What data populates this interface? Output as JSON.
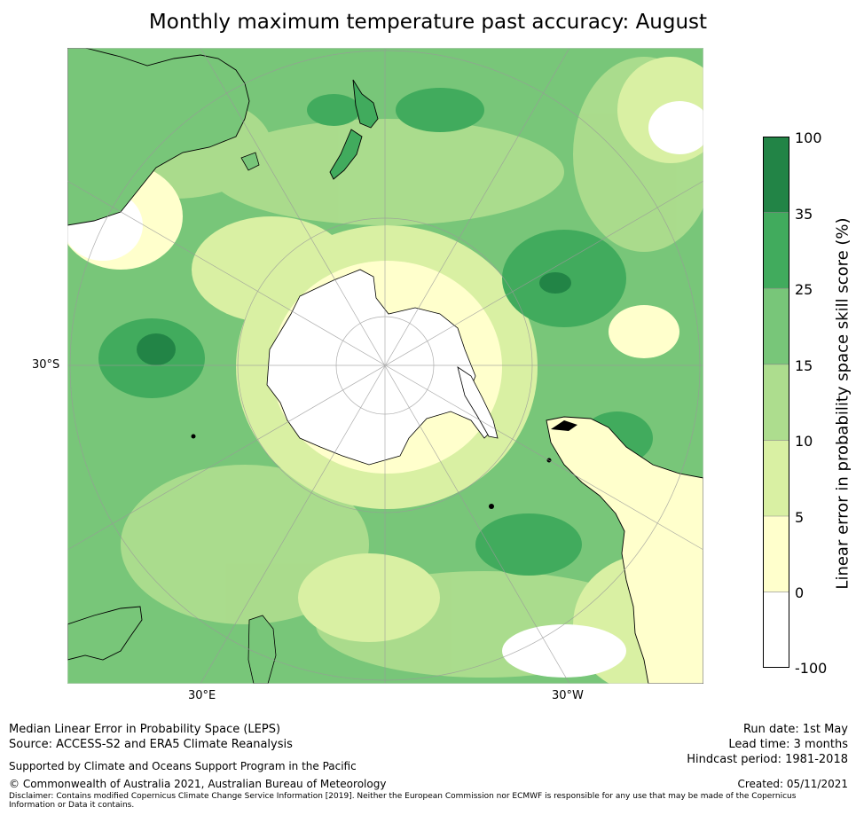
{
  "title": "Monthly maximum temperature past accuracy: August",
  "map": {
    "projection": "south polar stereographic",
    "lat_labels": [
      "30°S"
    ],
    "lon_labels": [
      "30°E",
      "30°W"
    ],
    "colors": {
      "ocean_background": "#7bc17b",
      "land_outline": "#000000",
      "graticule": "#999999"
    }
  },
  "colorbar": {
    "label": "Linear error in probability space skill score (%)",
    "ticks": [
      "100",
      "35",
      "25",
      "15",
      "10",
      "5",
      "0",
      "-100"
    ],
    "bins": [
      {
        "range": "35 to 100",
        "color": "#228446"
      },
      {
        "range": "25 to 35",
        "color": "#41ab5d"
      },
      {
        "range": "15 to 25",
        "color": "#78c679"
      },
      {
        "range": "10 to 15",
        "color": "#addd8e"
      },
      {
        "range": "5 to 10",
        "color": "#d9f0a3"
      },
      {
        "range": "0 to 5",
        "color": "#ffffcc"
      },
      {
        "range": "-100 to 0",
        "color": "#ffffff"
      }
    ]
  },
  "footer": {
    "line1": "Median Linear Error in Probability Space (LEPS)",
    "line2": "Source: ACCESS-S2 and ERA5 Climate Reanalysis",
    "support": "Supported by Climate and Oceans Support Program in the Pacific",
    "copyright": "© Commonwealth of Australia 2021, Australian Bureau of Meteorology",
    "disclaimer1": "Disclaimer: Contains modified Copernicus Climate Change Service Information [2019]. Neither the European Commission nor ECMWF is responsible for any use that may be made of the Copernicus",
    "disclaimer2": "Information or Data it contains.",
    "run_date": "Run date: 1st May",
    "lead_time": "Lead time: 3 months",
    "hindcast": "Hindcast period: 1981-2018",
    "created": "Created: 05/11/2021"
  }
}
